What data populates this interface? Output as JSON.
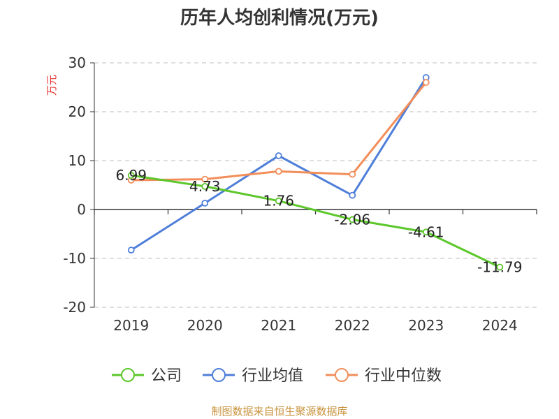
{
  "chart_data": {
    "type": "line",
    "title": "历年人均创利情况(万元)",
    "ylabel": "万元",
    "xlabel": "",
    "categories": [
      "2019",
      "2020",
      "2021",
      "2022",
      "2023",
      "2024"
    ],
    "ylim": [
      -20,
      30
    ],
    "yticks": [
      30,
      20,
      10,
      0,
      -10,
      -20
    ],
    "grid": true,
    "legend_position": "bottom",
    "series": [
      {
        "name": "公司",
        "color": "#5cc72b",
        "values": [
          6.99,
          4.73,
          1.76,
          -2.06,
          -4.61,
          -11.79
        ],
        "labels": [
          "6.99",
          "4.73",
          "1.76",
          "-2.06",
          "-4.61",
          "-11.79"
        ]
      },
      {
        "name": "行业均值",
        "color": "#4f7fd8",
        "values": [
          -8.3,
          1.3,
          11.0,
          2.9,
          27.0,
          null
        ]
      },
      {
        "name": "行业中位数",
        "color": "#f28e5a",
        "values": [
          6.0,
          6.2,
          7.8,
          7.2,
          26.0,
          null
        ]
      }
    ],
    "source": "制图数据来自恒生聚源数据库"
  }
}
